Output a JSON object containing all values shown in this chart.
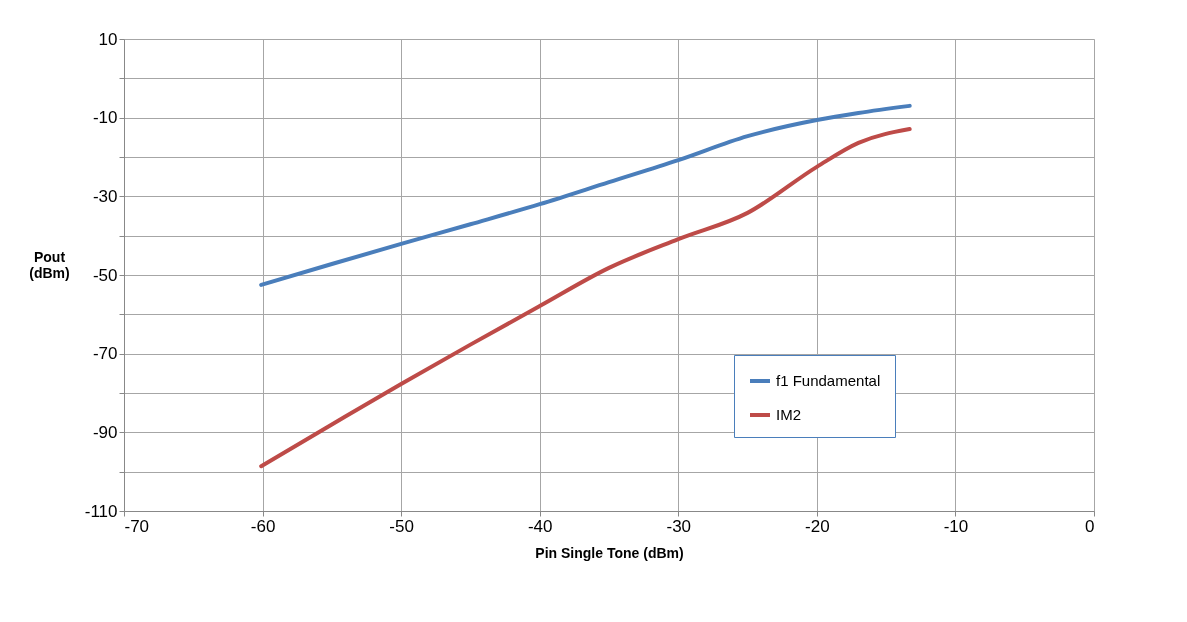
{
  "chart_data": {
    "type": "line",
    "xlabel": "Pin Single Tone (dBm)",
    "ylabel": "Pout (dBm)",
    "x": [
      -60.1,
      -55,
      -50,
      -45,
      -40,
      -35,
      -30,
      -25,
      -20,
      -17,
      -13.3
    ],
    "series": [
      {
        "name": "f1 Fundamental",
        "color": "#4a7ebb",
        "values": [
          -52.5,
          -47.2,
          -42.1,
          -37.1,
          -32,
          -26.4,
          -20.8,
          -14.7,
          -10.6,
          -8.8,
          -7.0
        ]
      },
      {
        "name": "IM2",
        "color": "#be4b48",
        "values": [
          -98.6,
          -88,
          -77.7,
          -67.7,
          -57.9,
          -48.2,
          -40.9,
          -34.2,
          -22.5,
          -16.4,
          -12.9
        ]
      }
    ],
    "xlim": [
      -70,
      0
    ],
    "xticks": [
      -70,
      -60,
      -50,
      -40,
      -30,
      -20,
      -10,
      0
    ],
    "ylim": [
      -110,
      10
    ],
    "yticks": [
      10,
      {
        "value": 0,
        "label": null
      },
      -10,
      {
        "value": -20,
        "label": null
      },
      -30,
      {
        "value": -40,
        "label": null
      },
      -50,
      {
        "value": -60,
        "label": null
      },
      -70,
      {
        "value": -80,
        "label": null
      },
      -90,
      {
        "value": -100,
        "label": null
      },
      -110
    ],
    "grid": true,
    "legend": "right",
    "marker": "none",
    "line_style": "solid"
  }
}
